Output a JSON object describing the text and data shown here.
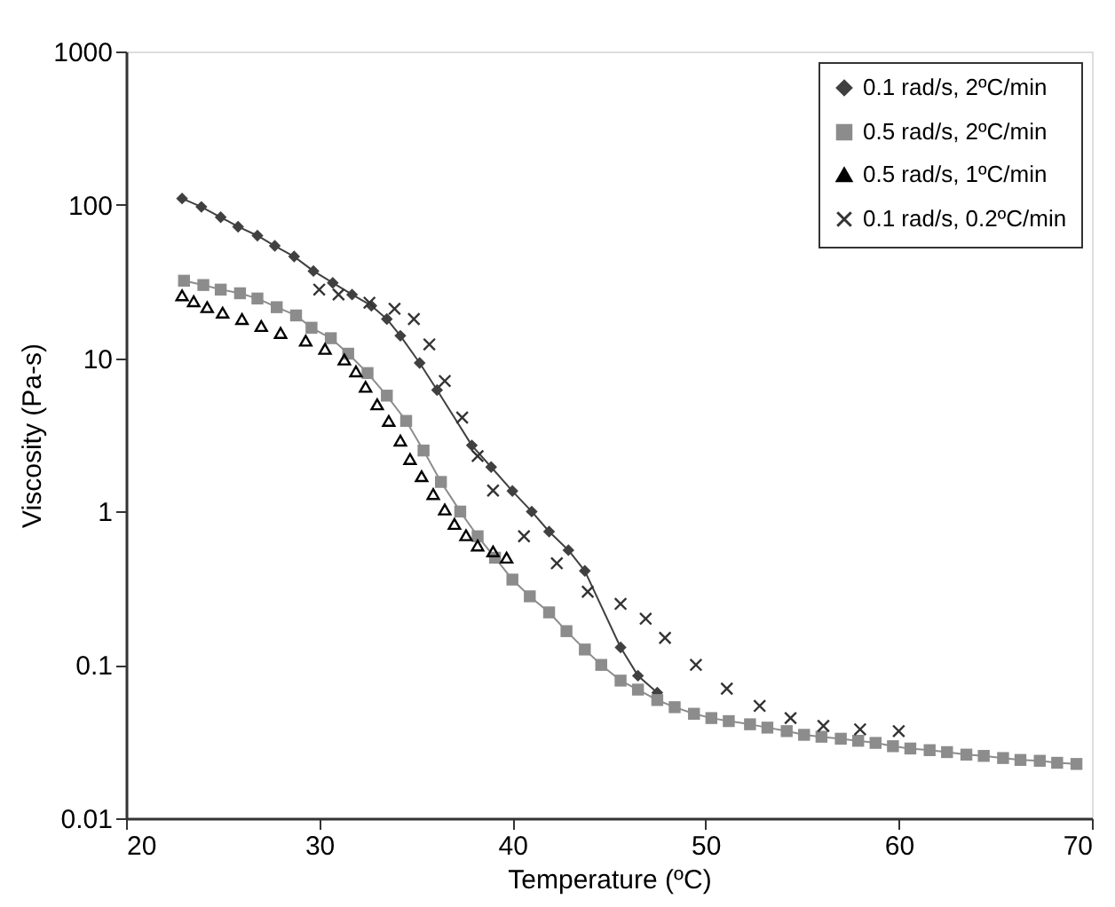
{
  "chart_data": {
    "type": "line",
    "xlabel": "Temperature (ºC)",
    "ylabel": "Viscosity (Pa-s)",
    "log": "y",
    "xlim": [
      20,
      70
    ],
    "xticks": [
      20,
      30,
      40,
      50,
      60,
      70
    ],
    "ylim": [
      0.01,
      1000
    ],
    "yticks": [
      0.01,
      0.1,
      1,
      10,
      100,
      1000
    ],
    "grid": false,
    "legend": "top right",
    "series": [
      {
        "name": "0.1 rad/s, 2ºC/min",
        "type": "line",
        "marker": "diamond",
        "line_style": "solid",
        "color": "#404040",
        "x": [
          22.9,
          23.9,
          24.9,
          25.8,
          26.8,
          27.7,
          28.7,
          29.7,
          30.7,
          31.7,
          32.7,
          33.5,
          34.2,
          35.2,
          36.1,
          37.9,
          38.9,
          40.0,
          41.0,
          41.9,
          42.9,
          43.75,
          45.6,
          46.5,
          47.5
        ],
        "values": [
          110,
          97,
          83,
          72,
          63,
          54,
          46,
          37,
          31,
          26,
          22,
          18,
          14,
          9.3,
          6.2,
          2.7,
          1.95,
          1.36,
          1.0,
          0.74,
          0.56,
          0.41,
          0.13,
          0.085,
          0.066
        ]
      },
      {
        "name": "0.5 rad/s, 2ºC/min",
        "type": "line",
        "marker": "square",
        "line_style": "solid",
        "color": "#8c8c8c",
        "x": [
          23.0,
          24.0,
          24.9,
          25.9,
          26.8,
          27.8,
          28.8,
          29.6,
          30.6,
          31.5,
          32.5,
          33.5,
          34.5,
          35.4,
          36.3,
          37.3,
          38.2,
          39.1,
          40.0,
          40.9,
          41.9,
          42.8,
          43.75,
          44.6,
          45.6,
          46.5,
          47.5,
          48.4,
          49.4,
          50.3,
          51.2,
          52.3,
          53.2,
          54.2,
          55.1,
          56.0,
          57.0,
          57.9,
          58.8,
          59.7,
          60.6,
          61.6,
          62.5,
          63.5,
          64.4,
          65.4,
          66.3,
          67.3,
          68.2,
          69.2
        ],
        "values": [
          32,
          30,
          28,
          26.5,
          24.5,
          21.5,
          19,
          15.8,
          13.5,
          10.7,
          8.0,
          5.7,
          3.9,
          2.5,
          1.56,
          1.0,
          0.69,
          0.5,
          0.36,
          0.28,
          0.22,
          0.166,
          0.126,
          0.1,
          0.079,
          0.069,
          0.059,
          0.053,
          0.048,
          0.045,
          0.043,
          0.041,
          0.039,
          0.037,
          0.035,
          0.034,
          0.033,
          0.032,
          0.031,
          0.0295,
          0.0285,
          0.0278,
          0.027,
          0.026,
          0.0255,
          0.0247,
          0.024,
          0.0237,
          0.023,
          0.0226
        ]
      },
      {
        "name": "0.5 rad/s, 1ºC/min",
        "type": "scatter",
        "marker": "triangle",
        "color": "#000000",
        "x": [
          22.9,
          23.5,
          24.2,
          25.0,
          26.0,
          27.0,
          28.0,
          29.3,
          30.3,
          31.3,
          31.9,
          32.4,
          33.0,
          33.6,
          34.2,
          34.7,
          35.3,
          35.9,
          36.5,
          37.0,
          37.6,
          38.2,
          39.0,
          39.7
        ],
        "values": [
          25.7,
          23.5,
          21.5,
          19.8,
          18,
          16.2,
          14.6,
          13,
          11.5,
          9.8,
          8.2,
          6.5,
          5.0,
          3.9,
          2.9,
          2.2,
          1.7,
          1.3,
          1.03,
          0.83,
          0.7,
          0.6,
          0.55,
          0.5
        ]
      },
      {
        "name": "0.1 rad/s, 0.2ºC/min",
        "type": "scatter",
        "marker": "cross",
        "color": "#333333",
        "x": [
          30.0,
          31.0,
          32.6,
          33.9,
          34.9,
          35.7,
          36.5,
          37.4,
          38.2,
          39.0,
          40.6,
          42.3,
          43.9,
          45.6,
          46.9,
          47.9,
          49.5,
          51.1,
          52.8,
          54.4,
          56.1,
          58.0,
          60.0
        ],
        "values": [
          28,
          26,
          23,
          21,
          18,
          12.3,
          7.1,
          4.1,
          2.3,
          1.37,
          0.69,
          0.46,
          0.3,
          0.25,
          0.2,
          0.15,
          0.1,
          0.07,
          0.054,
          0.045,
          0.04,
          0.038,
          0.037
        ]
      }
    ]
  }
}
